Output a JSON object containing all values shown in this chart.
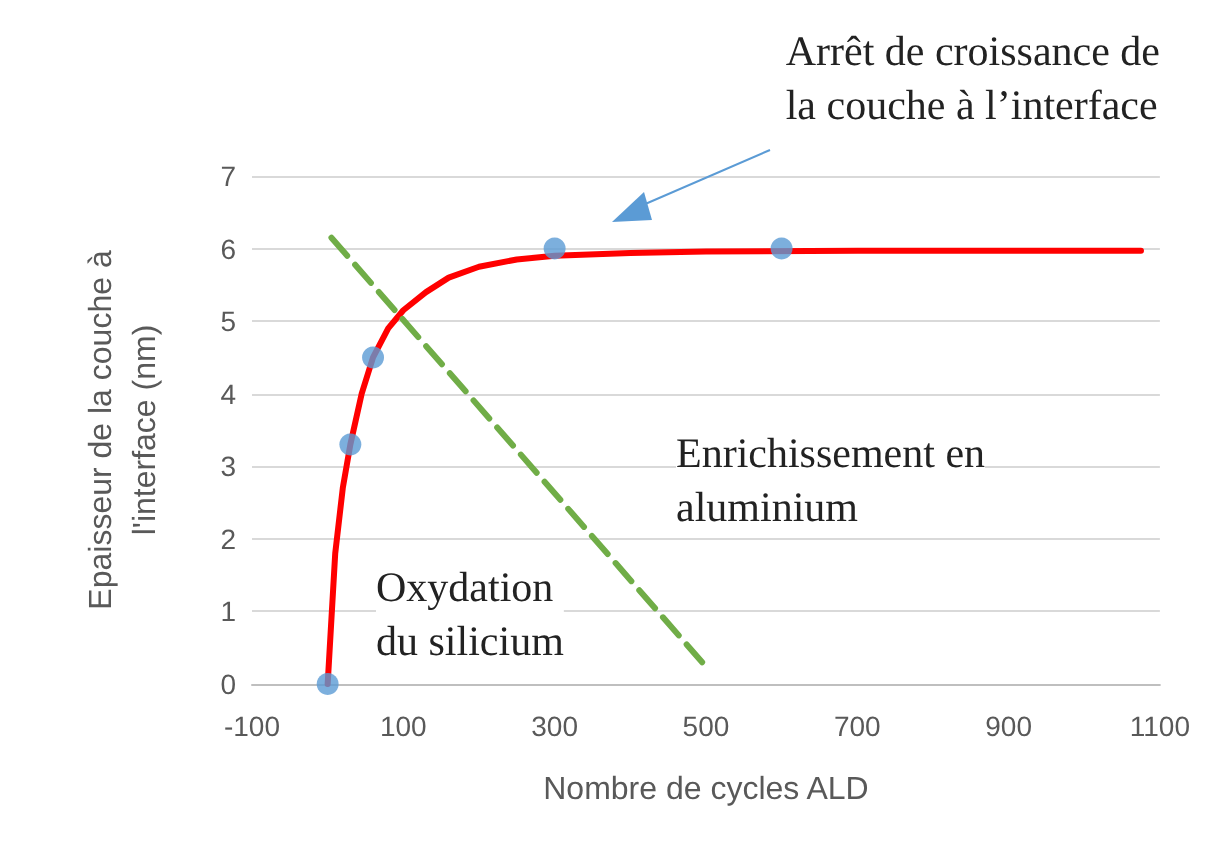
{
  "chart_data": {
    "type": "scatter",
    "xlabel": "Nombre de cycles ALD",
    "ylabel": "Epaisseur de la couche à\nl'interface (nm)",
    "xlim": [
      -100,
      1100
    ],
    "xticks": [
      -100,
      100,
      300,
      500,
      700,
      900,
      {
        "value": 1100,
        "label": "1100"
      }
    ],
    "ylim": [
      0,
      7
    ],
    "yticks": [
      0,
      1,
      2,
      3,
      4,
      5,
      6,
      7
    ],
    "grid": "y",
    "series": [
      {
        "type": "line",
        "color": "#ff0000",
        "marker": "none",
        "line_style": "solid",
        "x": [
          0,
          10,
          20,
          30,
          45,
          60,
          80,
          100,
          130,
          160,
          200,
          250,
          300,
          400,
          500,
          700,
          800,
          1075
        ],
        "values": [
          0,
          1.8,
          2.7,
          3.3,
          4.0,
          4.5,
          4.9,
          5.15,
          5.4,
          5.6,
          5.75,
          5.85,
          5.9,
          5.94,
          5.96,
          5.97,
          5.97,
          5.97
        ]
      },
      {
        "type": "line",
        "color": "#70ad47",
        "marker": "none",
        "line_style": "dashed",
        "x": [
          5,
          495
        ],
        "values": [
          6.15,
          0.3
        ]
      },
      {
        "color": "#5b9bd5",
        "marker": "circle",
        "x": [
          0,
          30,
          60,
          300,
          600
        ],
        "values": [
          0,
          3.3,
          4.5,
          6,
          6
        ]
      }
    ],
    "annotations": [
      "Arrêt de croissance de\nla couche à l’interface",
      "Enrichissement en\naluminium",
      "Oxydation\ndu silicium"
    ]
  }
}
